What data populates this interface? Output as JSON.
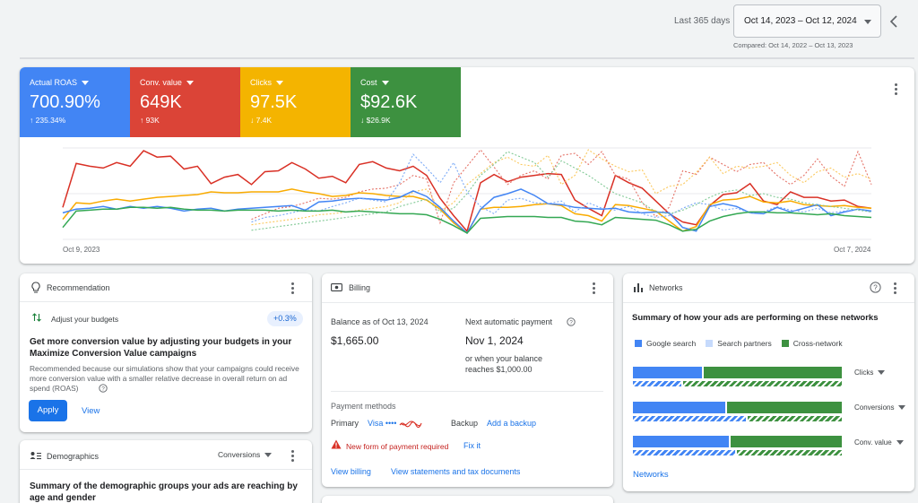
{
  "header": {
    "range_label": "Last 365 days",
    "date_range": "Oct 14, 2023 – Oct 12, 2024",
    "compared": "Compared: Oct 14, 2022 – Oct 13, 2023"
  },
  "metrics": [
    {
      "label": "Actual ROAS",
      "value": "700.90%",
      "delta": "↑ 235.34%",
      "color": "#4285f4"
    },
    {
      "label": "Conv. value",
      "value": "649K",
      "delta": "↑ 93K",
      "color": "#db4437"
    },
    {
      "label": "Clicks",
      "value": "97.5K",
      "delta": "↓ 7.4K",
      "color": "#f4b400"
    },
    {
      "label": "Cost",
      "value": "$92.6K",
      "delta": "↓ $26.9K",
      "color": "#3d9140"
    }
  ],
  "main_chart": {
    "start_label": "Oct 9, 2023",
    "end_label": "Oct 7, 2024"
  },
  "chart_data": {
    "type": "line",
    "x_start": "Oct 9, 2023",
    "x_end": "Oct 7, 2024",
    "ylim": [
      0,
      100
    ],
    "series": [
      {
        "name": "Conv. value",
        "color": "#d93025",
        "style": "solid",
        "values": [
          35,
          83,
          80,
          78,
          84,
          80,
          97,
          90,
          91,
          77,
          80,
          61,
          68,
          71,
          60,
          74,
          75,
          84,
          77,
          67,
          69,
          62,
          82,
          85,
          78,
          75,
          80,
          70,
          45,
          26,
          9,
          62,
          71,
          63,
          68,
          70,
          72,
          71,
          43,
          34,
          26,
          70,
          62,
          56,
          42,
          28,
          19,
          16,
          37,
          49,
          51,
          61,
          42,
          38,
          52,
          46,
          46,
          42,
          43,
          36,
          34
        ]
      },
      {
        "name": "Conv. value (prev)",
        "color": "#e57368",
        "style": "dashed",
        "values": [
          null,
          null,
          null,
          null,
          null,
          null,
          null,
          null,
          null,
          null,
          null,
          null,
          null,
          null,
          22,
          28,
          34,
          36,
          40,
          45,
          44,
          46,
          52,
          55,
          56,
          60,
          70,
          66,
          18,
          62,
          80,
          98,
          79,
          60,
          70,
          75,
          66,
          92,
          94,
          82,
          96,
          70,
          66,
          40,
          25,
          35,
          75,
          71,
          90,
          82,
          74,
          82,
          84,
          70,
          60,
          70,
          88,
          69,
          58,
          96,
          60
        ]
      },
      {
        "name": "Clicks",
        "color": "#f9ab00",
        "style": "solid",
        "values": [
          22,
          40,
          39,
          42,
          44,
          42,
          44,
          46,
          47,
          48,
          49,
          52,
          51,
          51,
          52,
          52,
          52,
          55,
          52,
          50,
          47,
          48,
          51,
          50,
          48,
          47,
          47,
          43,
          33,
          18,
          7,
          33,
          35,
          35,
          36,
          38,
          39,
          37,
          28,
          26,
          20,
          38,
          37,
          34,
          31,
          20,
          9,
          14,
          38,
          43,
          44,
          47,
          41,
          40,
          42,
          38,
          37,
          36,
          37,
          35,
          34
        ]
      },
      {
        "name": "Clicks (prev)",
        "color": "#fbc85c",
        "style": "dashed",
        "values": [
          null,
          null,
          null,
          null,
          null,
          null,
          null,
          null,
          null,
          null,
          null,
          null,
          null,
          null,
          16,
          18,
          20,
          22,
          24,
          27,
          28,
          30,
          32,
          34,
          36,
          40,
          52,
          55,
          32,
          40,
          60,
          72,
          84,
          90,
          82,
          80,
          92,
          60,
          70,
          98,
          88,
          80,
          74,
          76,
          50,
          58,
          60,
          73,
          90,
          72,
          80,
          78,
          80,
          84,
          70,
          62,
          74,
          78,
          68,
          72,
          66
        ]
      },
      {
        "name": "Actual ROAS",
        "color": "#4285f4",
        "style": "solid",
        "values": [
          29,
          33,
          34,
          36,
          33,
          36,
          34,
          36,
          34,
          31,
          33,
          34,
          31,
          33,
          34,
          35,
          36,
          37,
          32,
          41,
          42,
          44,
          45,
          44,
          43,
          46,
          53,
          47,
          35,
          20,
          7,
          33,
          46,
          50,
          55,
          48,
          39,
          38,
          35,
          34,
          33,
          34,
          30,
          29,
          30,
          29,
          13,
          9,
          36,
          39,
          36,
          29,
          28,
          35,
          30,
          34,
          38,
          26,
          30,
          33,
          31
        ]
      },
      {
        "name": "Actual ROAS (prev)",
        "color": "#7baaf7",
        "style": "dashed",
        "values": [
          null,
          null,
          null,
          null,
          null,
          null,
          null,
          null,
          null,
          null,
          null,
          null,
          null,
          null,
          19,
          24,
          26,
          29,
          33,
          31,
          36,
          40,
          45,
          43,
          41,
          62,
          93,
          78,
          62,
          84,
          52,
          36,
          28,
          43,
          45,
          40,
          39,
          42,
          30,
          40,
          34,
          32,
          36,
          28,
          24,
          26,
          34,
          40,
          38,
          32,
          34,
          29,
          30,
          36,
          32,
          30,
          34,
          29,
          31,
          33,
          30
        ]
      },
      {
        "name": "Cost",
        "color": "#34a853",
        "style": "solid",
        "values": [
          13,
          31,
          32,
          33,
          33,
          35,
          35,
          34,
          35,
          33,
          32,
          32,
          31,
          32,
          32,
          32,
          31,
          32,
          31,
          31,
          32,
          30,
          31,
          30,
          29,
          28,
          28,
          27,
          22,
          15,
          7,
          23,
          24,
          25,
          25,
          25,
          24,
          24,
          20,
          19,
          16,
          24,
          23,
          22,
          21,
          16,
          9,
          11,
          20,
          25,
          28,
          30,
          30,
          29,
          29,
          28,
          27,
          28,
          26,
          25,
          24
        ]
      },
      {
        "name": "Cost (prev)",
        "color": "#81c995",
        "style": "dashed",
        "values": [
          null,
          null,
          null,
          null,
          null,
          null,
          null,
          null,
          null,
          null,
          null,
          null,
          null,
          null,
          10,
          12,
          14,
          16,
          18,
          20,
          22,
          24,
          26,
          28,
          30,
          36,
          40,
          44,
          30,
          34,
          50,
          70,
          82,
          96,
          90,
          84,
          68,
          86,
          78,
          70,
          60,
          50,
          45,
          40,
          30,
          28,
          32,
          38,
          46,
          52,
          54,
          48,
          50,
          46,
          44,
          40,
          38,
          36,
          34,
          32,
          30
        ]
      }
    ]
  },
  "recommendation": {
    "title": "Recommendation",
    "item_label": "Adjust your budgets",
    "badge": "+0.3%",
    "headline": "Get more conversion value by adjusting your budgets in your Maximize Conversion Value campaigns",
    "body": "Recommended because our simulations show that your campaigns could receive more conversion value with a smaller relative decrease in overall return on ad spend (ROAS)",
    "apply": "Apply",
    "view": "View"
  },
  "demographics": {
    "title": "Demographics",
    "dropdown": "Conversions",
    "summary": "Summary of the demographic groups your ads are reaching by age and gender"
  },
  "billing": {
    "title": "Billing",
    "balance_label": "Balance as of Oct 13, 2024",
    "balance_value": "$1,665.00",
    "next_label": "Next automatic payment",
    "next_date": "Nov 1, 2024",
    "next_note": "or when your balance reaches $1,000.00",
    "methods_label": "Payment methods",
    "primary_label": "Primary",
    "primary_value": "Visa ••••",
    "backup_label": "Backup",
    "add_backup": "Add a backup",
    "warning": "New form of payment required",
    "fix_it": "Fix it",
    "view_billing": "View billing",
    "view_statements": "View statements and tax documents"
  },
  "networks": {
    "title": "Networks",
    "summary": "Summary of how your ads are performing on these networks",
    "legend": [
      {
        "label": "Google search",
        "color": "#4285f4"
      },
      {
        "label": "Search partners",
        "color": "#c6dafc"
      },
      {
        "label": "Cross-network",
        "color": "#3d9140"
      }
    ],
    "rows": [
      {
        "label": "Clicks",
        "current": [
          0.33,
          0.67
        ],
        "previous": [
          0.23,
          0.77
        ]
      },
      {
        "label": "Conversions",
        "current": [
          0.44,
          0.56
        ],
        "previous": [
          0.54,
          0.46
        ]
      },
      {
        "label": "Conv. value",
        "current": [
          0.46,
          0.54
        ],
        "previous": [
          0.49,
          0.51
        ]
      }
    ],
    "footer_link": "Networks"
  }
}
